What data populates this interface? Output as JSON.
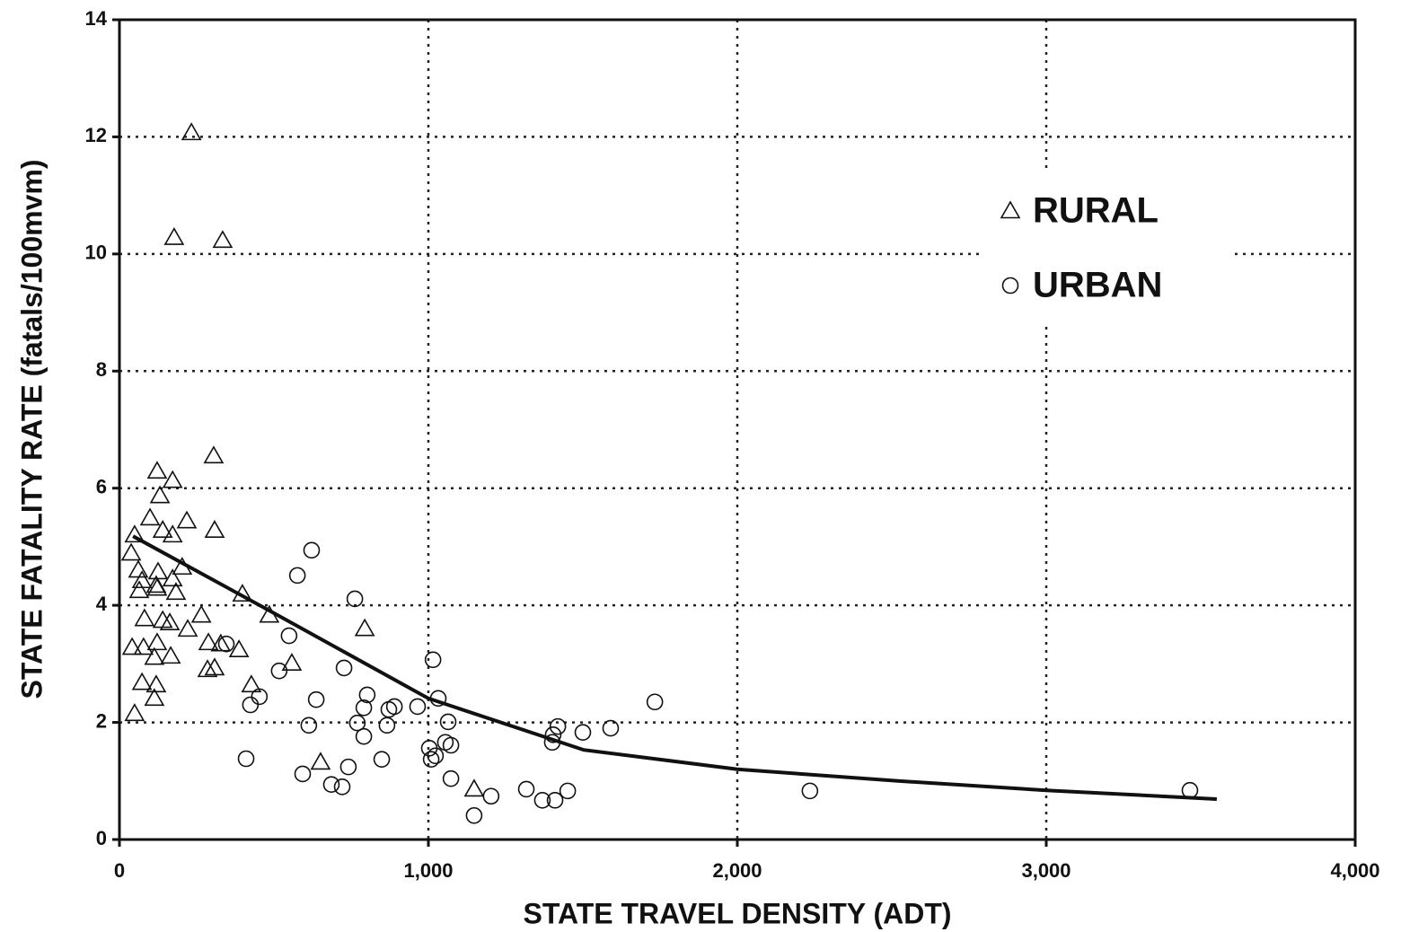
{
  "chart_data": {
    "type": "scatter",
    "x_label": "STATE TRAVEL DENSITY (ADT)",
    "y_label": "STATE FATALITY RATE (fatals/100mvm)",
    "xlim": [
      0,
      4000
    ],
    "ylim": [
      0,
      14
    ],
    "xticks": [
      0,
      {
        "value": 1000,
        "label": "1,000"
      },
      {
        "value": 2000,
        "label": "2,000"
      },
      {
        "value": 3000,
        "label": "3,000"
      },
      {
        "value": 4000,
        "label": "4,000"
      }
    ],
    "yticks": [
      0,
      2,
      4,
      6,
      8,
      10,
      12,
      14
    ],
    "grid": true,
    "legend_position": "upper right",
    "series": [
      {
        "name": "RURAL",
        "marker": "triangle",
        "color": "#111111",
        "x": [
          233,
          177,
          334,
          305,
          122,
          172,
          131,
          218,
          99,
          308,
          140,
          172,
          49,
          38,
          203,
          125,
          61,
          73,
          172,
          119,
          122,
          64,
          183,
          398,
          81,
          140,
          163,
          265,
          485,
          221,
          794,
          41,
          122,
          78,
          166,
          113,
          288,
          328,
          387,
          558,
          285,
          308,
          73,
          119,
          427,
          113,
          49,
          651,
          1148
        ],
        "values": [
          12.07,
          10.28,
          10.23,
          6.55,
          6.29,
          6.13,
          5.87,
          5.44,
          5.49,
          5.28,
          5.28,
          5.2,
          5.2,
          4.89,
          4.65,
          4.57,
          4.6,
          4.42,
          4.45,
          4.34,
          4.29,
          4.25,
          4.22,
          4.19,
          3.77,
          3.74,
          3.7,
          3.83,
          3.83,
          3.59,
          3.6,
          3.28,
          3.36,
          3.28,
          3.13,
          3.11,
          3.36,
          3.34,
          3.24,
          3.01,
          2.9,
          2.93,
          2.68,
          2.64,
          2.64,
          2.41,
          2.15,
          1.32,
          0.86
        ]
      },
      {
        "name": "URBAN",
        "marker": "circle",
        "color": "#111111",
        "x": [
          622,
          576,
          762,
          549,
          346,
          1015,
          727,
          517,
          637,
          453,
          424,
          802,
          1032,
          890,
          965,
          791,
          872,
          1733,
          1590,
          1500,
          1419,
          1064,
          866,
          770,
          613,
          1404,
          791,
          1401,
          1055,
          1073,
          1003,
          1023,
          1009,
          849,
          410,
          741,
          593,
          1073,
          686,
          721,
          1317,
          1203,
          1451,
          1369,
          1410,
          2235,
          3465,
          1148
        ],
        "values": [
          4.94,
          4.51,
          4.11,
          3.48,
          3.34,
          3.07,
          2.93,
          2.88,
          2.39,
          2.44,
          2.3,
          2.47,
          2.41,
          2.27,
          2.27,
          2.25,
          2.22,
          2.35,
          1.9,
          1.83,
          1.93,
          2.01,
          1.95,
          1.99,
          1.95,
          1.79,
          1.76,
          1.66,
          1.66,
          1.61,
          1.56,
          1.43,
          1.37,
          1.37,
          1.38,
          1.24,
          1.12,
          1.04,
          0.94,
          0.9,
          0.86,
          0.74,
          0.83,
          0.67,
          0.67,
          0.83,
          0.84,
          0.41
        ]
      }
    ],
    "fit_line": {
      "color": "#111111",
      "x": [
        44,
        485,
        1000,
        1503,
        2000,
        2520,
        3000,
        3552
      ],
      "values": [
        5.18,
        3.91,
        2.41,
        1.53,
        1.2,
        1.0,
        0.84,
        0.69
      ]
    }
  }
}
